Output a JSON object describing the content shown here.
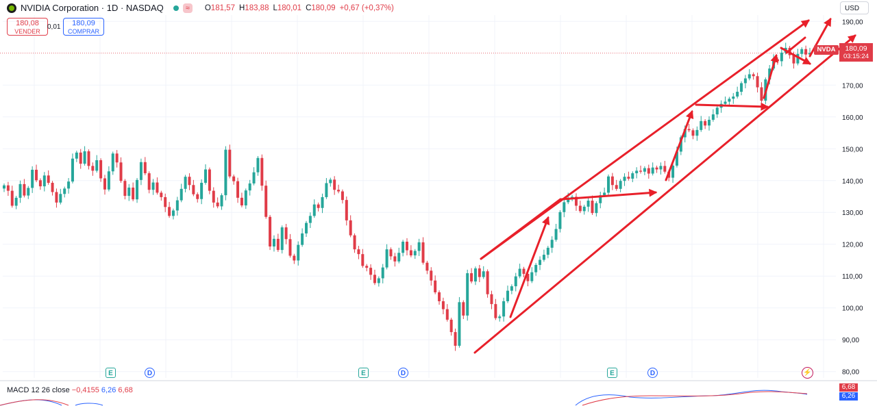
{
  "header": {
    "title": "NVIDIA Corporation · 1D · NASDAQ",
    "wave_icon": "≈",
    "ohlc": [
      {
        "k": "O",
        "v": "181,57"
      },
      {
        "k": "H",
        "v": "183,88"
      },
      {
        "k": "L",
        "v": "180,01"
      },
      {
        "k": "C",
        "v": "180,09"
      },
      {
        "k": "",
        "v": "+0,67 (+0,37%)"
      }
    ]
  },
  "trade": {
    "sell_price": "180,08",
    "sell_label": "VENDER",
    "spread": "0,01",
    "buy_price": "180,09",
    "buy_label": "COMPRAR"
  },
  "currency": "USD",
  "ticker": "NVDA",
  "last_price": "180,09",
  "countdown": "03:15:24",
  "macd": {
    "label": "MACD 12 26 close",
    "hist": "−0,4155",
    "macd": "6,26",
    "signal": "6,68",
    "tag_signal": "6,68",
    "tag_macd": "6,26"
  },
  "events": [
    {
      "type": "E",
      "label": "E"
    },
    {
      "type": "D",
      "label": "D"
    },
    {
      "type": "E",
      "label": "E"
    },
    {
      "type": "D",
      "label": "D"
    },
    {
      "type": "E",
      "label": "E"
    },
    {
      "type": "D",
      "label": "D"
    }
  ],
  "colors": {
    "up": "#26a69a",
    "down": "#e03c48",
    "annotation": "#e8202a",
    "grid": "#f0f3fa"
  },
  "chart_data": {
    "type": "candlestick",
    "y_axis": {
      "ylim": [
        78,
        192
      ],
      "ticks": [
        80,
        90,
        100,
        110,
        120,
        130,
        140,
        150,
        160,
        170,
        190
      ],
      "tick_labels": [
        "80,00",
        "90,00",
        "100,00",
        "110,00",
        "120,00",
        "130,00",
        "140,00",
        "150,00",
        "160,00",
        "170,00",
        "190,00"
      ]
    },
    "last_close": 180.09,
    "close": [
      138.5,
      136.8,
      132.1,
      134.6,
      138.9,
      135.3,
      137.7,
      143.4,
      140.1,
      138.2,
      141.6,
      139.3,
      136.4,
      133.1,
      135.8,
      137.5,
      139.7,
      146.9,
      148.8,
      145.3,
      149.2,
      144.6,
      143.1,
      146.4,
      140.7,
      137.2,
      142.9,
      148.5,
      145.7,
      139.9,
      135.2,
      137.8,
      134.1,
      140.2,
      145.8,
      142.3,
      137.1,
      139.4,
      136.2,
      134.8,
      131.7,
      128.9,
      130.6,
      133.8,
      137.4,
      141.2,
      138.6,
      135.7,
      134.2,
      139.3,
      143.5,
      136.8,
      133.1,
      131.9,
      135.4,
      149.7,
      141.3,
      139.8,
      134.6,
      132.2,
      136.9,
      139.1,
      142.6,
      147.1,
      138.4,
      128.6,
      119.3,
      121.7,
      118.2,
      125.3,
      121.6,
      116.4,
      114.9,
      119.8,
      123.4,
      126.7,
      128.9,
      132.5,
      131.4,
      134.8,
      139.2,
      140.3,
      137.1,
      136.6,
      133.9,
      127.5,
      122.8,
      118.4,
      116.9,
      113.2,
      112.6,
      110.4,
      107.8,
      109.3,
      112.7,
      118.4,
      116.2,
      114.6,
      117.3,
      120.8,
      118.1,
      116.5,
      117.9,
      120.6,
      114.2,
      111.7,
      108.6,
      104.9,
      102.1,
      99.6,
      96.3,
      92.4,
      88.1,
      101.8,
      97.6,
      110.9,
      108.3,
      112.4,
      109.7,
      111.5,
      104.3,
      101.2,
      96.8,
      97.3,
      102.1,
      105.4,
      106.8,
      109.9,
      112.3,
      110.7,
      108.4,
      111.2,
      113.5,
      115.1,
      116.7,
      118.9,
      121.4,
      124.8,
      130.1,
      133.2,
      134.6,
      134.9,
      132.1,
      130.4,
      131.8,
      133.7,
      129.8,
      132.9,
      135.4,
      136.2,
      141.3,
      138.6,
      137.4,
      139.9,
      141.2,
      140.6,
      142.3,
      143.1,
      142.8,
      143.9,
      142.2,
      144.1,
      143.5,
      144.6,
      142.8,
      140.9,
      144.7,
      149.1,
      153.6,
      156.2,
      155.8,
      154.1,
      155.9,
      158.7,
      157.3,
      159.1,
      160.8,
      162.9,
      164.1,
      164.8,
      165.7,
      166.4,
      167.9,
      170.6,
      172.1,
      173.4,
      172.8,
      169.3,
      165.1,
      171.8,
      175.2,
      178.1,
      177.5,
      180.2,
      181.7,
      179.4,
      176.8,
      179.8,
      181.3,
      179.6,
      180.09
    ]
  }
}
